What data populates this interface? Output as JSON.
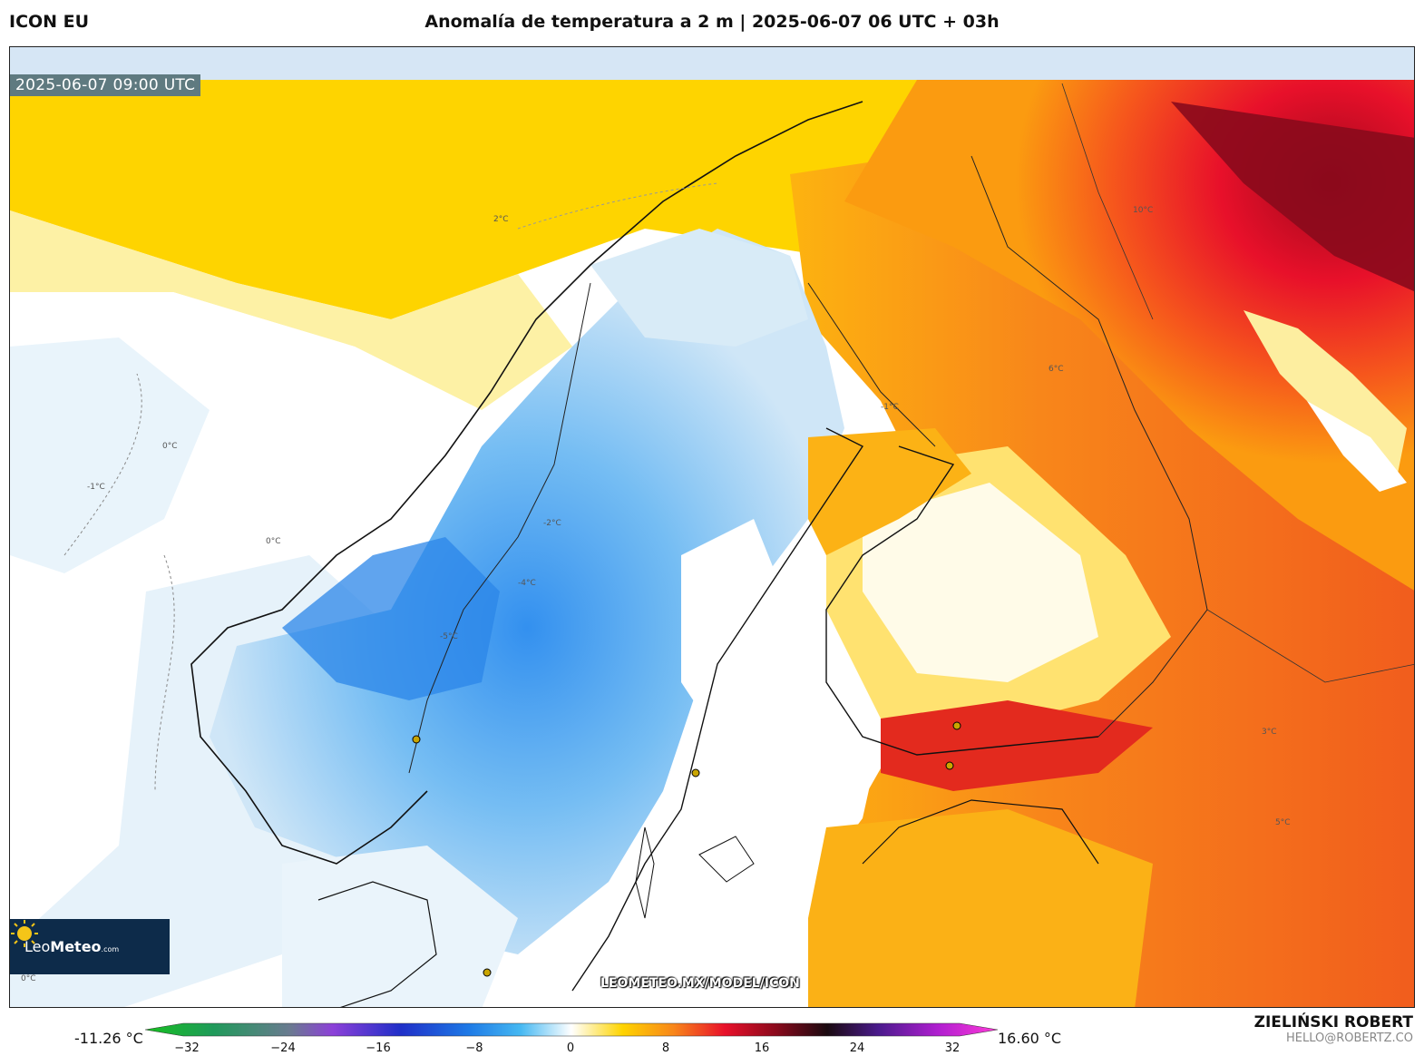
{
  "header": {
    "model": "ICON EU",
    "title": "Anomalía de temperatura a 2 m | 2025-06-07 06 UTC + 03h"
  },
  "map": {
    "valid_time": "2025-06-07 09:00 UTC",
    "watermark": "LEOMETEO.MX/MODEL/ICON",
    "contour_labels": [
      "0°C",
      "-1°C",
      "-2°C",
      "-4°C",
      "-5°C",
      "2°C",
      "3°C",
      "5°C",
      "6°C",
      "10°C"
    ]
  },
  "logo": {
    "name_light": "Leo",
    "name_bold": "Meteo",
    "suffix": ".com"
  },
  "colorbar": {
    "min_label": "-11.26 °C",
    "max_label": "16.60 °C",
    "ticks": [
      "−32",
      "−24",
      "−16",
      "−8",
      "0",
      "8",
      "16",
      "24",
      "32"
    ]
  },
  "credit": {
    "author": "ZIELIŃSKI ROBERT",
    "email": "HELLO@ROBERTZ.CO"
  }
}
